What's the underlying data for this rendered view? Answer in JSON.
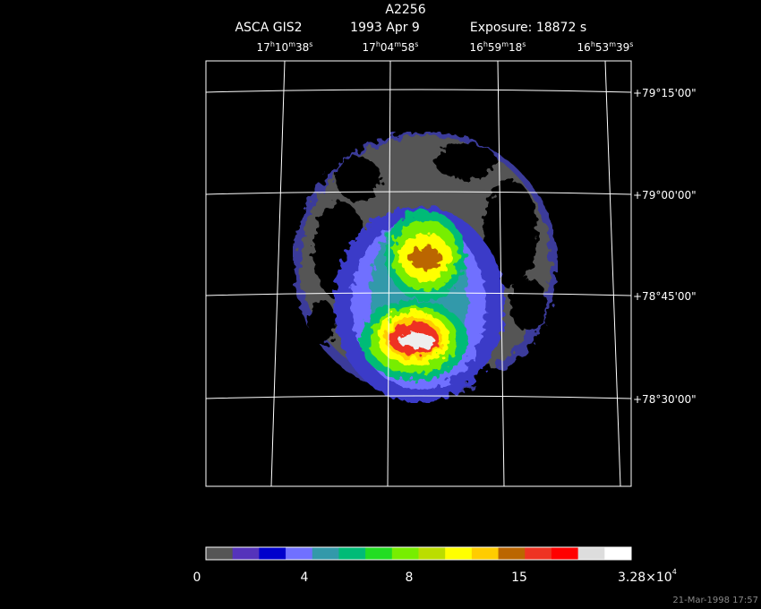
{
  "header": {
    "title": "A2256",
    "instrument": "ASCA GIS2",
    "date": "1993 Apr  9",
    "exposure": "Exposure: 18872 s"
  },
  "ra_units": [
    "h",
    "m",
    "s"
  ],
  "ra_labels": [
    [
      "17",
      "10",
      "38"
    ],
    [
      "17",
      "04",
      "58"
    ],
    [
      "16",
      "59",
      "18"
    ],
    [
      "16",
      "53",
      "39"
    ]
  ],
  "dec_labels": [
    "+79°15'00\"",
    "+79°00'00\"",
    "+78°45'00\"",
    "+78°30'00\""
  ],
  "colorbar": {
    "colors": [
      "#555555",
      "#5533bb",
      "#0000cc",
      "#7070ff",
      "#3399aa",
      "#00bb77",
      "#22dd22",
      "#77ee00",
      "#bbdd00",
      "#ffff00",
      "#ffcc00",
      "#bb6600",
      "#ee3322",
      "#ff0000",
      "#dddddd",
      "#ffffff"
    ],
    "labels": [
      "0",
      "4",
      "8",
      "15"
    ],
    "max_label": "3.28×10",
    "max_exponent": "4"
  },
  "timestamp": "21-Mar-1998 17:57"
}
